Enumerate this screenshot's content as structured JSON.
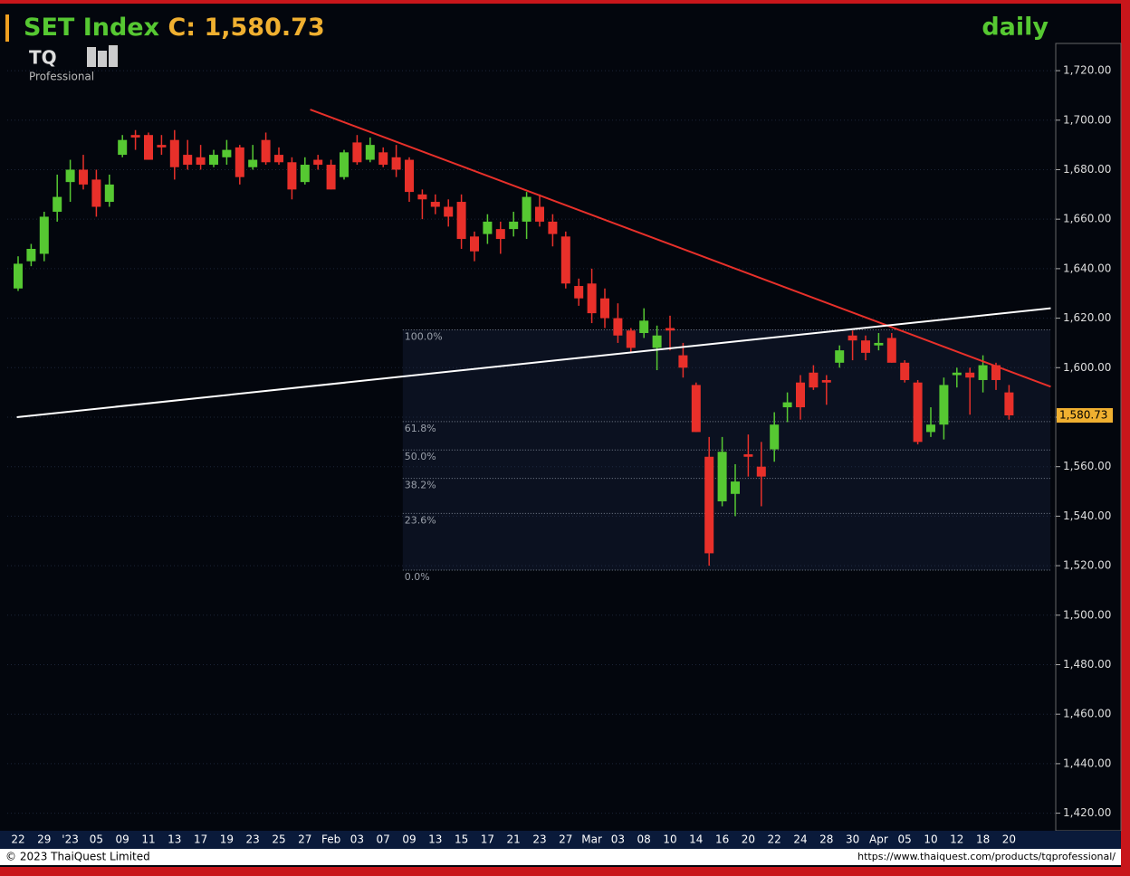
{
  "chart_data": {
    "type": "candlestick",
    "title": "SET Index",
    "title_value": "C: 1,580.73",
    "period": "daily",
    "logo": "TQ",
    "logo_sub": "Professional",
    "copyright": "© 2023 ThaiQuest Limited",
    "url": "https://www.thaiquest.com/products/tqprofessional/",
    "last_label": "1,580.73",
    "categories": [
      "22",
      null,
      "29",
      null,
      "'23",
      null,
      "05",
      null,
      "09",
      null,
      "11",
      null,
      "13",
      null,
      "17",
      null,
      "19",
      null,
      "23",
      null,
      "25",
      null,
      "27",
      null,
      "Feb",
      null,
      "03",
      null,
      "07",
      null,
      "09",
      null,
      "13",
      null,
      "15",
      null,
      "17",
      null,
      "21",
      null,
      "23",
      null,
      "27",
      null,
      "Mar",
      null,
      "03",
      null,
      "08",
      null,
      "10",
      null,
      "14",
      null,
      "16",
      null,
      "20",
      null,
      "22",
      null,
      "24",
      null,
      "28",
      null,
      "30",
      null,
      "Apr",
      null,
      "05",
      null,
      "10",
      null,
      "12",
      null,
      "18",
      null,
      "20"
    ],
    "open": [
      1632,
      1643,
      1646,
      1663,
      1675,
      1680,
      1676,
      1667,
      1686,
      1694,
      1694,
      1690,
      1692,
      1686,
      1685,
      1682,
      1685,
      1689,
      1681,
      1692,
      1686,
      1683,
      1675,
      1684,
      1682,
      1677,
      1691,
      1684,
      1687,
      1685,
      1684,
      1670,
      1667,
      1665,
      1667,
      1653,
      1654,
      1656,
      1656,
      1659,
      1665,
      1659,
      1653,
      1633,
      1634,
      1628,
      1620,
      1615,
      1614,
      1608,
      1616,
      1605,
      1593,
      1564,
      1546,
      1549,
      1565,
      1560,
      1567,
      1584,
      1594,
      1598,
      1595,
      1602,
      1613,
      1611,
      1609,
      1612,
      1602,
      1594,
      1574,
      1577,
      1597,
      1598,
      1595,
      1601,
      1590
    ],
    "high": [
      1645,
      1650,
      1663,
      1678,
      1684,
      1686,
      1680,
      1678,
      1694,
      1696,
      1695,
      1694,
      1696,
      1692,
      1690,
      1688,
      1692,
      1690,
      1690,
      1695,
      1689,
      1685,
      1685,
      1686,
      1684,
      1688,
      1694,
      1693,
      1689,
      1690,
      1685,
      1672,
      1670,
      1668,
      1670,
      1655,
      1662,
      1659,
      1663,
      1671,
      1670,
      1662,
      1655,
      1636,
      1640,
      1632,
      1626,
      1616,
      1624,
      1617,
      1621,
      1610,
      1594,
      1572,
      1572,
      1561,
      1573,
      1570,
      1582,
      1590,
      1597,
      1601,
      1597,
      1609,
      1615,
      1613,
      1614,
      1614,
      1603,
      1595,
      1584,
      1596,
      1600,
      1600,
      1605,
      1602,
      1593
    ],
    "low": [
      1631,
      1641,
      1643,
      1659,
      1667,
      1672,
      1661,
      1665,
      1685,
      1688,
      1684,
      1686,
      1676,
      1680,
      1680,
      1681,
      1682,
      1674,
      1680,
      1682,
      1682,
      1668,
      1674,
      1680,
      1672,
      1676,
      1682,
      1683,
      1681,
      1677,
      1667,
      1660,
      1662,
      1657,
      1648,
      1643,
      1650,
      1646,
      1653,
      1652,
      1657,
      1649,
      1632,
      1625,
      1618,
      1616,
      1610,
      1606,
      1612,
      1599,
      1607,
      1596,
      1574,
      1520,
      1544,
      1540,
      1556,
      1544,
      1562,
      1578,
      1579,
      1591,
      1585,
      1600,
      1603,
      1603,
      1607,
      1602,
      1594,
      1569,
      1572,
      1571,
      1592,
      1581,
      1590,
      1591,
      1579
    ],
    "close": [
      1642,
      1648,
      1661,
      1669,
      1680,
      1674,
      1665,
      1674,
      1692,
      1693,
      1684,
      1689,
      1681,
      1682,
      1682,
      1686,
      1688,
      1677,
      1684,
      1683,
      1683,
      1672,
      1682,
      1682,
      1672,
      1687,
      1683,
      1690,
      1682,
      1680,
      1671,
      1668,
      1665,
      1661,
      1652,
      1647,
      1659,
      1652,
      1659,
      1669,
      1659,
      1654,
      1634,
      1628,
      1622,
      1620,
      1613,
      1608,
      1619,
      1613,
      1615,
      1600,
      1574,
      1525,
      1566,
      1554,
      1564,
      1556,
      1577,
      1586,
      1584,
      1592,
      1594,
      1607,
      1611,
      1606,
      1610,
      1602,
      1595,
      1570,
      1577,
      1593,
      1598,
      1596,
      1601,
      1595,
      1580.73
    ],
    "up_color": "#56c832",
    "down_color": "#e8302a",
    "ylim": [
      1414,
      1731
    ],
    "yticks": [
      {
        "value": 1420,
        "label": "1,420.00"
      },
      {
        "value": 1440,
        "label": "1,440.00"
      },
      {
        "value": 1460,
        "label": "1,460.00"
      },
      {
        "value": 1480,
        "label": "1,480.00"
      },
      {
        "value": 1500,
        "label": "1,500.00"
      },
      {
        "value": 1520,
        "label": "1,520.00"
      },
      {
        "value": 1540,
        "label": "1,540.00"
      },
      {
        "value": 1560,
        "label": "1,560.00"
      },
      {
        "value": 1580,
        "label": "1,580.00"
      },
      {
        "value": 1600,
        "label": "1,600.00"
      },
      {
        "value": 1620,
        "label": "1,620.00"
      },
      {
        "value": 1640,
        "label": "1,640.00"
      },
      {
        "value": 1660,
        "label": "1,660.00"
      },
      {
        "value": 1680,
        "label": "1,680.00"
      },
      {
        "value": 1700,
        "label": "1,700.00"
      },
      {
        "value": 1720,
        "label": "1,720.00"
      }
    ],
    "trendlines": [
      {
        "color": "#e8302a",
        "x": [
          22.4,
          79.2
        ],
        "y": [
          1704.3,
          1592.3
        ]
      },
      {
        "color": "#ffffff",
        "x": [
          -0.1,
          79.2
        ],
        "y": [
          1580,
          1624
        ]
      }
    ],
    "fibonacci": {
      "x_start": 29.5,
      "high": 1615.3,
      "low": 1518.2,
      "levels": [
        100,
        61.8,
        50,
        38.2,
        23.6,
        0
      ],
      "level_labels": [
        "100.0%",
        "61.8%",
        "50.0%",
        "38.2%",
        "23.6%",
        "0.0%"
      ]
    }
  }
}
